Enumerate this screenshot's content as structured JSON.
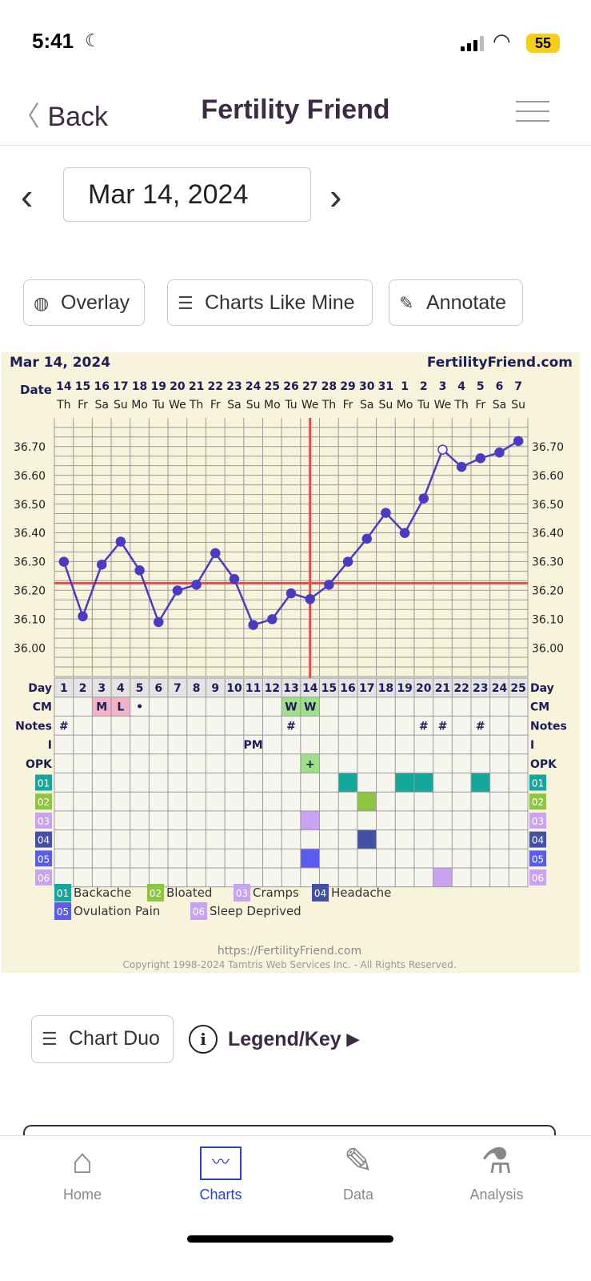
{
  "status": {
    "time": "5:41",
    "battery": "55"
  },
  "nav": {
    "back": "Back",
    "title": "Fertility Friend"
  },
  "date_picker": {
    "value": "Mar 14, 2024"
  },
  "buttons": {
    "overlay": "Overlay",
    "charts_like_mine": "Charts Like Mine",
    "annotate": "Annotate",
    "chart_duo": "Chart Duo",
    "legend_key": "Legend/Key"
  },
  "tabs": [
    "Home",
    "Charts",
    "Data",
    "Analysis"
  ],
  "colors": {
    "accent": "#2a3fd6",
    "line": "#4a3bc4",
    "coverline": "#e05050",
    "panel": "#f8f4dc"
  },
  "chart_data": {
    "type": "line",
    "title": "Mar 14, 2024",
    "site": "FertilityFriend.com",
    "date_label": "Date",
    "dates": [
      "14",
      "15",
      "16",
      "17",
      "18",
      "19",
      "20",
      "21",
      "22",
      "23",
      "24",
      "25",
      "26",
      "27",
      "28",
      "29",
      "30",
      "31",
      "1",
      "2",
      "3",
      "4",
      "5",
      "6",
      "7"
    ],
    "weekdays": [
      "Th",
      "Fr",
      "Sa",
      "Su",
      "Mo",
      "Tu",
      "We",
      "Th",
      "Fr",
      "Sa",
      "Su",
      "Mo",
      "Tu",
      "We",
      "Th",
      "Fr",
      "Sa",
      "Su",
      "Mo",
      "Tu",
      "We",
      "Th",
      "Fr",
      "Sa",
      "Su"
    ],
    "days": [
      1,
      2,
      3,
      4,
      5,
      6,
      7,
      8,
      9,
      10,
      11,
      12,
      13,
      14,
      15,
      16,
      17,
      18,
      19,
      20,
      21,
      22,
      23,
      24,
      25
    ],
    "temps": [
      36.3,
      36.11,
      36.29,
      36.37,
      36.27,
      36.09,
      36.2,
      36.22,
      36.33,
      36.24,
      36.08,
      36.1,
      36.19,
      36.17,
      36.22,
      36.3,
      36.38,
      36.47,
      36.4,
      36.52,
      36.69,
      36.63,
      36.66,
      36.68,
      36.72
    ],
    "open_points": [
      21
    ],
    "coverline": 36.225,
    "ovulation_day": 14,
    "yticks": [
      "36.70",
      "36.60",
      "36.50",
      "36.40",
      "36.30",
      "36.20",
      "36.10",
      "36.00"
    ],
    "ylim": [
      35.97,
      36.8
    ],
    "row_labels": [
      "Day",
      "CM",
      "Notes",
      "I",
      "OPK"
    ],
    "cm": [
      {
        "day": 3,
        "text": "M",
        "color": "#f2b3c6"
      },
      {
        "day": 4,
        "text": "L",
        "color": "#f2b3c6"
      },
      {
        "day": 5,
        "text": "•",
        "color": ""
      },
      {
        "day": 13,
        "text": "W",
        "color": "#9ee08a"
      },
      {
        "day": 14,
        "text": "W",
        "color": "#9ee08a"
      }
    ],
    "notes": [
      1,
      13,
      20,
      21,
      23
    ],
    "notes_mark": "#",
    "intercourse": [
      {
        "day": 11,
        "text": "PM"
      }
    ],
    "opk": [
      {
        "day": 14,
        "text": "+",
        "color": "#9ee08a"
      }
    ],
    "symptoms": [
      {
        "code": "01",
        "name": "Backache",
        "color": "#14a89c",
        "days": [
          16,
          19,
          20,
          23
        ]
      },
      {
        "code": "02",
        "name": "Bloated",
        "color": "#8cc63f",
        "days": [
          17
        ]
      },
      {
        "code": "03",
        "name": "Cramps",
        "color": "#c9a3f0",
        "days": [
          14
        ]
      },
      {
        "code": "04",
        "name": "Headache",
        "color": "#444fa6",
        "days": [
          17
        ]
      },
      {
        "code": "05",
        "name": "Ovulation Pain",
        "color": "#5a5cf0",
        "days": [
          14
        ]
      },
      {
        "code": "06",
        "name": "Sleep Deprived",
        "color": "#c9a3f0",
        "days": [
          21
        ]
      }
    ],
    "footer_url": "https://FertilityFriend.com",
    "copyright": "Copyright 1998-2024 Tamtris Web Services Inc. - All Rights Reserved."
  }
}
